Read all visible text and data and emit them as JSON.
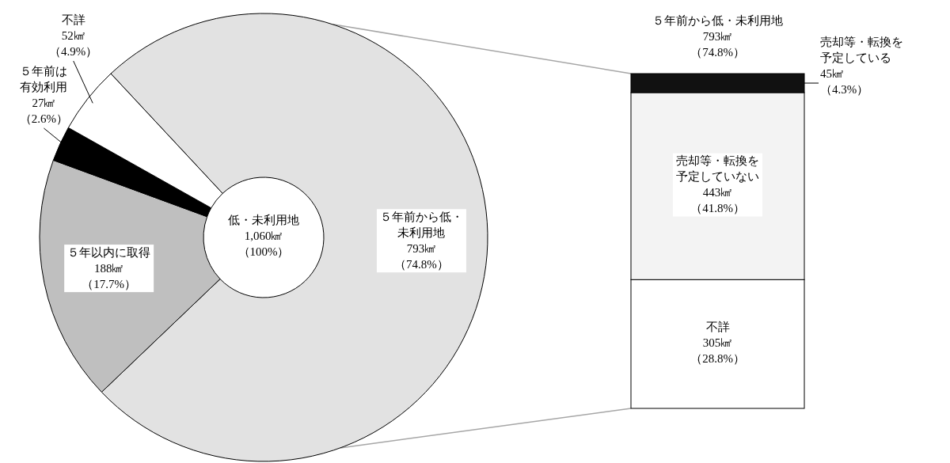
{
  "chart_data": [
    {
      "type": "donut",
      "categories": [
        "５年前から低・未利用地",
        "５年以内に取得",
        "５年前は有効利用",
        "不詳"
      ],
      "values": [
        793,
        188,
        27,
        52
      ],
      "colors": [
        "#e2e2e2",
        "#bfbfbf",
        "#000000",
        "#ffffff"
      ],
      "value_labels": [
        "793㎢（74.8%）",
        "188㎢（17.7%）",
        "27㎢（2.6%）",
        "52㎢（4.9%）"
      ],
      "annotations": [
        "低・未利用地1,060㎢（100%）"
      ]
    },
    {
      "type": "bar",
      "stacked": true,
      "title": "５年前から低・未利用地793㎢（74.8%）",
      "categories": [
        null
      ],
      "series": [
        {
          "name": "不詳",
          "color": "#ffffff",
          "values": [
            305
          ],
          "value_labels": [
            "305㎢（28.8%）"
          ]
        },
        {
          "name": "売却等・転換を予定していない",
          "color": "#f3f3f3",
          "values": [
            443
          ],
          "value_labels": [
            "443㎢（41.8%）"
          ]
        },
        {
          "name": "売却等・転換を予定している",
          "color": "#111111",
          "values": [
            45
          ],
          "value_labels": [
            "45㎢（4.3%）"
          ]
        }
      ]
    }
  ]
}
